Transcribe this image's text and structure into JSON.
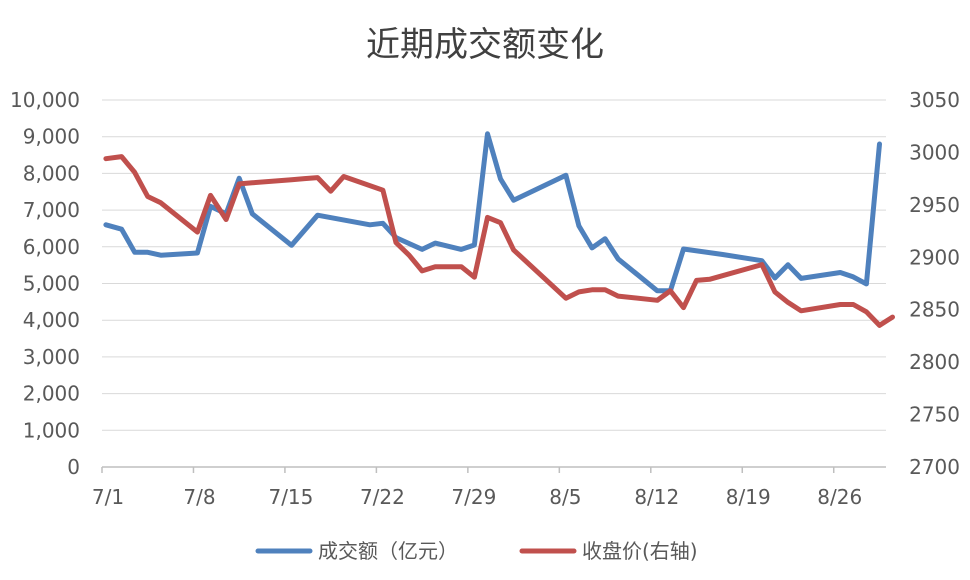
{
  "chart_data": {
    "type": "line",
    "title": "近期成交额变化",
    "x_ticks": [
      "7/1",
      "7/8",
      "7/15",
      "7/22",
      "7/29",
      "8/5",
      "8/12",
      "8/19",
      "8/26"
    ],
    "x_range": [
      0,
      60
    ],
    "left_axis": {
      "range": [
        0,
        10000
      ],
      "ticks": [
        "0",
        "1,000",
        "2,000",
        "3,000",
        "4,000",
        "5,000",
        "6,000",
        "7,000",
        "8,000",
        "9,000",
        "10,000"
      ]
    },
    "right_axis": {
      "range": [
        2700,
        3050
      ],
      "ticks": [
        "2700",
        "2750",
        "2800",
        "2850",
        "2900",
        "2950",
        "3000",
        "3050"
      ]
    },
    "grid": true,
    "legend_position": "bottom",
    "series": [
      {
        "name": "成交额（亿元）",
        "axis": "left",
        "color": "#4F81BD",
        "x": [
          0.3,
          1.5,
          2.5,
          3.5,
          4.5,
          7.3,
          8.3,
          9.5,
          10.5,
          11.5,
          14.5,
          16.5,
          20.5,
          21.5,
          22.5,
          24.5,
          25.5,
          27.5,
          28.5,
          29.5,
          30.5,
          31.5,
          35.5,
          36.5,
          37.5,
          38.5,
          39.5,
          42.5,
          43.5,
          44.5,
          47.5,
          50.5,
          51.5,
          52.5,
          53.5,
          56.5,
          57.5,
          58.5,
          59.5
        ],
        "values": [
          6600,
          6480,
          5850,
          5850,
          5770,
          5830,
          7100,
          6900,
          7870,
          6900,
          6040,
          6860,
          6600,
          6640,
          6250,
          5930,
          6100,
          5930,
          6050,
          9080,
          7850,
          7270,
          7950,
          6570,
          5970,
          6220,
          5670,
          4800,
          4800,
          5940,
          5790,
          5620,
          5150,
          5510,
          5140,
          5300,
          5180,
          4990,
          8800
        ]
      },
      {
        "name": "收盘价(右轴)",
        "axis": "right",
        "color": "#C0504D",
        "x": [
          0.3,
          1.5,
          2.5,
          3.5,
          4.5,
          7.3,
          8.3,
          9.5,
          10.5,
          11.5,
          14.5,
          15.5,
          16.5,
          17.5,
          18.5,
          21.5,
          22.5,
          23.5,
          24.5,
          25.5,
          26.5,
          27.5,
          28.5,
          29.5,
          30.5,
          31.5,
          35.5,
          36.5,
          37.5,
          38.5,
          39.5,
          42.5,
          43.5,
          44.5,
          45.5,
          46.5,
          50.5,
          51.5,
          52.5,
          53.5,
          56.5,
          57.5,
          58.5,
          59.5,
          60.5
        ],
        "values": [
          2994,
          2996,
          2981,
          2958,
          2952,
          2924,
          2959,
          2936,
          2970,
          2971,
          2974,
          2975,
          2976,
          2963,
          2977,
          2964,
          2914,
          2902,
          2887,
          2891,
          2891,
          2891,
          2881,
          2938,
          2933,
          2907,
          2861,
          2867,
          2869,
          2869,
          2863,
          2859,
          2868,
          2852,
          2878,
          2879,
          2893,
          2867,
          2857,
          2849,
          2855,
          2855,
          2848,
          2835,
          2843
        ]
      }
    ]
  }
}
